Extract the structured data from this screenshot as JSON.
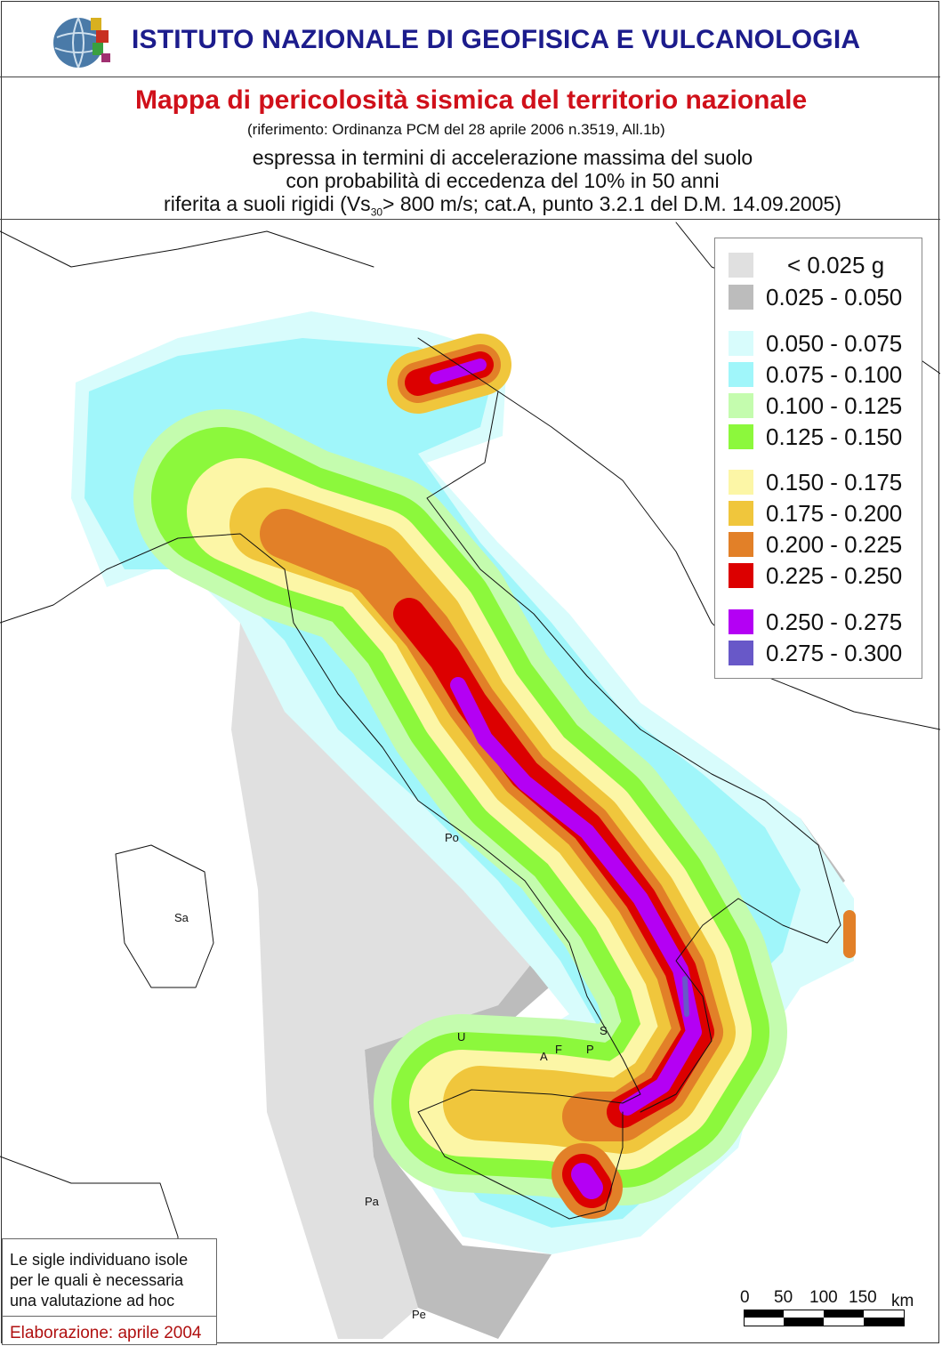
{
  "header": {
    "institute": "ISTITUTO NAZIONALE DI GEOFISICA E VULCANOLOGIA",
    "logo": "INGV globe logo"
  },
  "titles": {
    "main": "Mappa di pericolosità sismica del territorio nazionale",
    "reference": "(riferimento: Ordinanza PCM del 28 aprile 2006 n.3519, All.1b)",
    "line1": "espressa in termini di accelerazione massima del suolo",
    "line2": "con probabilità di eccedenza del 10% in 50 anni",
    "line3_a": "riferita a suoli rigidi (Vs",
    "line3_sub": "30",
    "line3_b": "> 800 m/s; cat.A, punto 3.2.1 del D.M. 14.09.2005)"
  },
  "legend": {
    "items": [
      {
        "label": "< 0.025 g",
        "color": "#e0e0e0"
      },
      {
        "label": "0.025 - 0.050",
        "color": "#bcbcbc"
      },
      {
        "label": "0.050 - 0.075",
        "color": "#d8fcfc"
      },
      {
        "label": "0.075 - 0.100",
        "color": "#a0f6fa"
      },
      {
        "label": "0.100 - 0.125",
        "color": "#c4fcae"
      },
      {
        "label": "0.125 - 0.150",
        "color": "#8cf83c"
      },
      {
        "label": "0.150 - 0.175",
        "color": "#fcf6a6"
      },
      {
        "label": "0.175 - 0.200",
        "color": "#f0c63c"
      },
      {
        "label": "0.200 - 0.225",
        "color": "#e28028"
      },
      {
        "label": "0.225 - 0.250",
        "color": "#dc0000"
      },
      {
        "label": "0.250 - 0.275",
        "color": "#b400f4"
      },
      {
        "label": "0.275 - 0.300",
        "color": "#6858c8"
      }
    ]
  },
  "islands": [
    "Po",
    "Sa",
    "U",
    "A",
    "F",
    "P",
    "S",
    "Pa",
    "Pe"
  ],
  "note": {
    "text_lines": [
      "Le sigle individuano isole",
      "per le quali è necessaria",
      "una valutazione ad hoc"
    ],
    "date": "Elaborazione: aprile 2004"
  },
  "scale": {
    "ticks": [
      "0",
      "50",
      "100",
      "150"
    ],
    "unit": "km"
  }
}
